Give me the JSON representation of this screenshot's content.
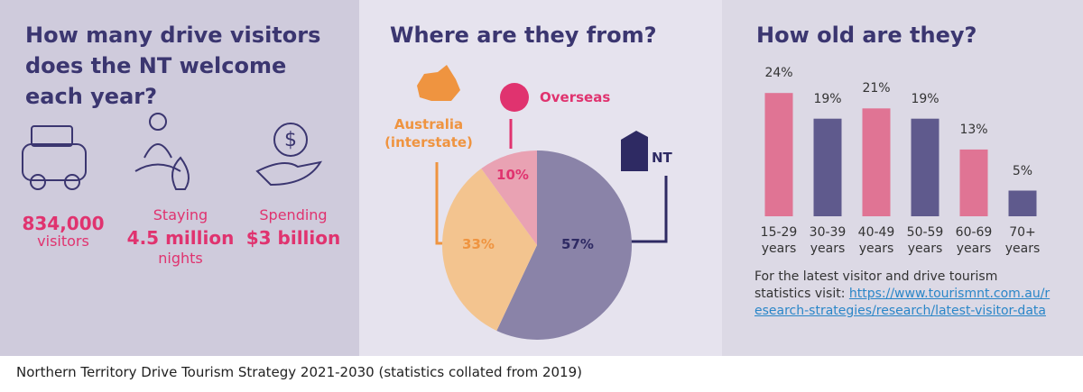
{
  "panel": {
    "title": "How many drive visitors does the NT welcome each year?",
    "stats": [
      {
        "value": "834,000",
        "label": "visitors"
      },
      {
        "prefix": "Staying",
        "value": "4.5 million",
        "label": "nights"
      },
      {
        "prefix": "Spending",
        "value": "$3 billion"
      }
    ]
  },
  "chart_data": [
    {
      "type": "pie",
      "title": "Where are they from?",
      "categories": [
        "NT",
        "Australia (interstate)",
        "Overseas"
      ],
      "values": [
        57,
        33,
        10
      ],
      "value_labels": [
        "57%",
        "33%",
        "10%"
      ],
      "colors": [
        "#8a83a8",
        "#f3c48f",
        "#e9a2b3"
      ],
      "label_colors": [
        "#2e2a63",
        "#ef9440",
        "#e0336f"
      ]
    },
    {
      "type": "bar",
      "title": "How old are they?",
      "categories": [
        "15-29 years",
        "30-39 years",
        "40-49 years",
        "50-59 years",
        "60-69 years",
        "70+ years"
      ],
      "values": [
        24,
        19,
        21,
        19,
        13,
        5
      ],
      "value_labels": [
        "24%",
        "19%",
        "21%",
        "19%",
        "13%",
        "5%"
      ],
      "colors": [
        "#e07494",
        "#5f5a8d",
        "#e07494",
        "#5f5a8d",
        "#e07494",
        "#5f5a8d"
      ]
    }
  ],
  "note": {
    "text": "For the latest visitor and drive tourism statistics visit:",
    "link": "https://www.tourismnt.com.au/research-strategies/research/latest-visitor-data"
  },
  "footer": "Northern Territory Drive Tourism Strategy 2021-2030 (statistics collated from 2019)"
}
